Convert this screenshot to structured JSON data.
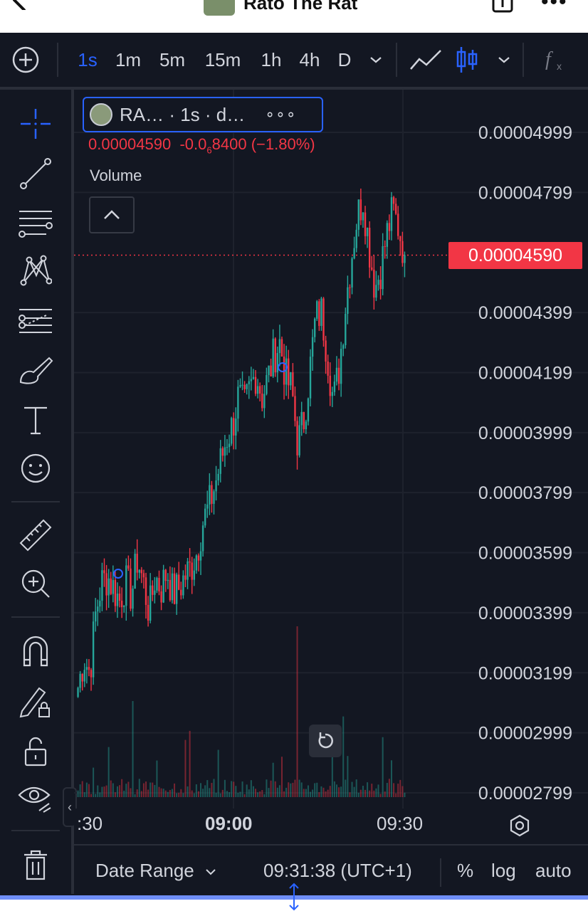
{
  "header": {
    "title": "Rato The Rat",
    "more_label": "•••"
  },
  "toolbar": {
    "add_icon": "plus-circle-icon",
    "timeframes": [
      "1s",
      "1m",
      "5m",
      "15m",
      "1h",
      "4h",
      "D"
    ],
    "active_timeframe": "1s",
    "chart_type_icons": [
      "line-chart-icon",
      "candles-icon"
    ],
    "indicators_icon": "fx-icon"
  },
  "left_tools": [
    "crosshair-icon",
    "trend-line-icon",
    "fib-icon",
    "pattern-icon",
    "projection-icon",
    "brush-icon",
    "text-icon",
    "emoji-icon",
    "ruler-icon",
    "zoom-in-icon",
    "magnet-icon",
    "lock-drawing-icon",
    "lock-icon",
    "eye-icon",
    "trash-icon"
  ],
  "legend": {
    "symbol_text": "RA… · 1s · d…",
    "dots": "∘∘∘",
    "ohlc_price": "0.00004590",
    "ohlc_change_pre": "-0.0",
    "ohlc_change_sub": "6",
    "ohlc_change_post": "8400",
    "ohlc_pct": "(−1.80%)",
    "volume_label": "Volume"
  },
  "price_axis": {
    "labels": [
      "0.00004999",
      "0.00004799",
      "0.00004399",
      "0.00004199",
      "0.00003999",
      "0.00003799",
      "0.00003599",
      "0.00003399",
      "0.00003199",
      "0.00002999",
      "0.00002799"
    ],
    "current_price_label": "0.00004590"
  },
  "time_axis": {
    "labels": [
      ":30",
      "09:00",
      "09:30"
    ],
    "bold_label": "09:00"
  },
  "bottom_bar": {
    "date_range": "Date Range",
    "time": "09:31:38 (UTC+1)",
    "percent": "%",
    "log": "log",
    "auto": "auto"
  },
  "colors": {
    "up": "#26a69a",
    "down": "#f23645",
    "accent": "#2962ff",
    "background": "#131722"
  },
  "chart_data": {
    "type": "candlestick",
    "title": "RA… · 1s",
    "ylim": [
      2.78e-05,
      5.08e-05
    ],
    "y_ticks": [
      4.999e-05,
      4.799e-05,
      4.399e-05,
      4.199e-05,
      3.999e-05,
      3.799e-05,
      3.599e-05,
      3.399e-05,
      3.199e-05,
      2.999e-05,
      2.799e-05
    ],
    "x_tick_labels": [
      ":30",
      "09:00",
      "09:30"
    ],
    "last_price": 4.59e-05,
    "change": -8.4e-07,
    "change_pct": -1.8,
    "close_path": [
      3.15e-05,
      3.25e-05,
      3.2e-05,
      3.4e-05,
      3.5e-05,
      3.52e-05,
      3.48e-05,
      3.44e-05,
      3.5e-05,
      3.46e-05,
      3.58e-05,
      3.5e-05,
      3.4e-05,
      3.52e-05,
      3.48e-05,
      3.54e-05,
      3.46e-05,
      3.48e-05,
      3.52e-05,
      3.55e-05,
      3.6e-05,
      3.7e-05,
      3.75e-05,
      3.82e-05,
      3.9e-05,
      3.98e-05,
      4.02e-05,
      4.12e-05,
      4.08e-05,
      4.15e-05,
      4.2e-05,
      4.12e-05,
      4.18e-05,
      4.26e-05,
      4.3e-05,
      4.18e-05,
      4.14e-05,
      3.96e-05,
      4.04e-05,
      4.2e-05,
      4.38e-05,
      4.4e-05,
      4.26e-05,
      4.1e-05,
      4.22e-05,
      4.42e-05,
      4.58e-05,
      4.72e-05,
      4.78e-05,
      4.62e-05,
      4.48e-05,
      4.55e-05,
      4.66e-05,
      4.74e-05,
      4.68e-05,
      4.59e-05
    ]
  }
}
